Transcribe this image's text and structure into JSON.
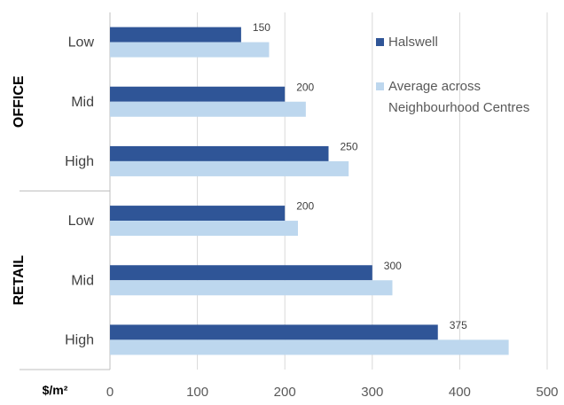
{
  "chart_data": {
    "type": "bar",
    "orientation": "horizontal",
    "groups": [
      {
        "name": "OFFICE",
        "categories": [
          "Low",
          "Mid",
          "High"
        ]
      },
      {
        "name": "RETAIL",
        "categories": [
          "Low",
          "Mid",
          "High"
        ]
      }
    ],
    "series": [
      {
        "name": "Halswell",
        "color": "#2F5597",
        "values": [
          150,
          200,
          250,
          200,
          300,
          375
        ]
      },
      {
        "name": "Average across\nNeighbourhood Centres",
        "color": "#BDD7EE",
        "values": [
          182,
          224,
          273,
          215,
          323,
          456
        ]
      }
    ],
    "data_labels_series": "Halswell",
    "xlim": [
      0,
      500
    ],
    "xticks": [
      0,
      100,
      200,
      300,
      400,
      500
    ],
    "xlabel": "$/m²",
    "grid": "vertical",
    "legend_position": "top-right",
    "gridline_color": "#D9D9D9"
  }
}
